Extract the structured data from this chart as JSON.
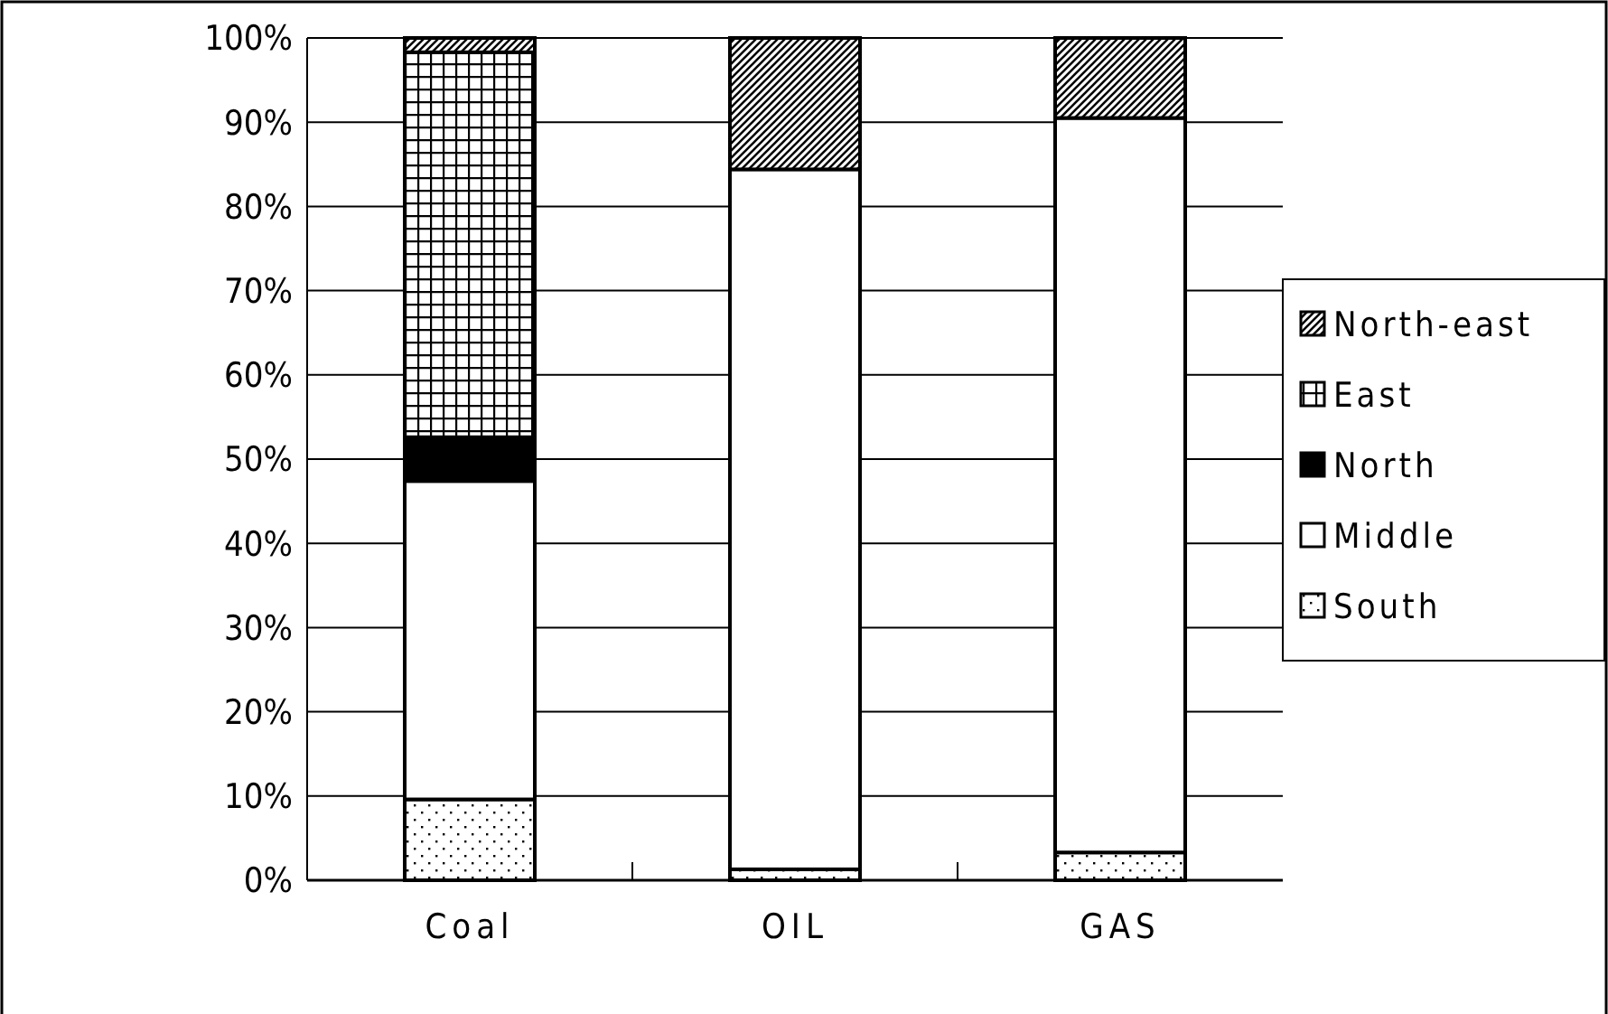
{
  "chart_data": {
    "type": "bar",
    "stacked": true,
    "categories": [
      "Coal",
      "OIL",
      "GAS"
    ],
    "series": [
      {
        "name": "South",
        "color": "#000000",
        "values": [
          9.6,
          1.3,
          3.3
        ]
      },
      {
        "name": "Middle",
        "color": "#ffffff",
        "values": [
          37.8,
          83.1,
          87.2
        ]
      },
      {
        "name": "North",
        "color": "#000000",
        "values": [
          5.2,
          0,
          0
        ]
      },
      {
        "name": "East",
        "color": "#000000",
        "values": [
          45.7,
          0,
          0
        ]
      },
      {
        "name": "North-east",
        "color": "#000000",
        "values": [
          1.7,
          15.6,
          9.5
        ]
      }
    ],
    "ylim": [
      0,
      100
    ],
    "yticks": [
      {
        "value": 0,
        "label": "0%"
      },
      {
        "value": 10,
        "label": "10%"
      },
      {
        "value": 20,
        "label": "20%"
      },
      {
        "value": 30,
        "label": "30%"
      },
      {
        "value": 40,
        "label": "40%"
      },
      {
        "value": 50,
        "label": "50%"
      },
      {
        "value": 60,
        "label": "60%"
      },
      {
        "value": 70,
        "label": "70%"
      },
      {
        "value": 80,
        "label": "80%"
      },
      {
        "value": 90,
        "label": "90%"
      },
      {
        "value": 100,
        "label": "100%"
      }
    ],
    "grid": "y",
    "legend": "right"
  }
}
